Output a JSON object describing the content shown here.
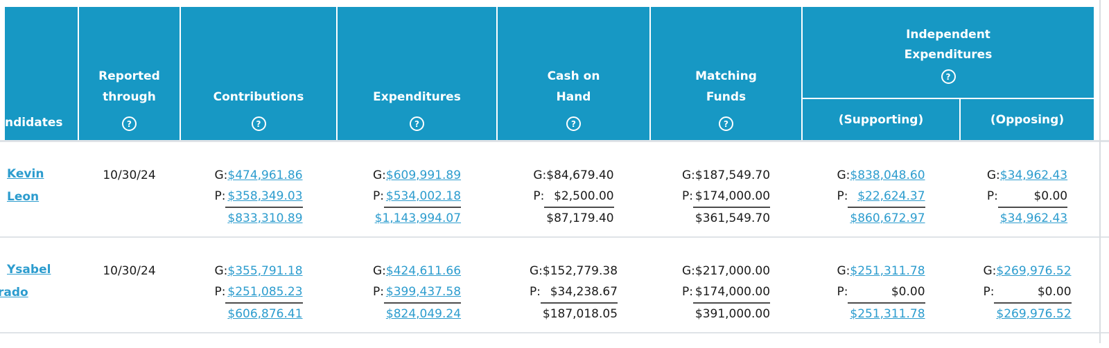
{
  "table": {
    "header": {
      "candidates_label": "ndidates",
      "columns": [
        {
          "id": "reported_through",
          "label_lines": [
            "Reported",
            "through"
          ],
          "help": true
        },
        {
          "id": "contributions",
          "label_lines": [
            "Contributions"
          ],
          "help": true
        },
        {
          "id": "expenditures",
          "label_lines": [
            "Expenditures"
          ],
          "help": true
        },
        {
          "id": "cash_on_hand",
          "label_lines": [
            "Cash on",
            "Hand"
          ],
          "help": true
        },
        {
          "id": "matching_funds",
          "label_lines": [
            "Matching",
            "Funds"
          ],
          "help": true
        }
      ],
      "ie_group": {
        "label_lines": [
          "Independent",
          "Expenditures"
        ],
        "help": true,
        "supporting_label": "(Supporting)",
        "opposing_label": "(Opposing)"
      },
      "help_glyph": "?"
    },
    "prefixes": {
      "general": "G:",
      "primary": "P:"
    },
    "money_column_order": [
      "contributions",
      "expenditures",
      "cash_on_hand",
      "matching_funds",
      "ie_supporting",
      "ie_opposing"
    ],
    "linked_columns": [
      "contributions",
      "expenditures",
      "ie_supporting",
      "ie_opposing"
    ],
    "rows": [
      {
        "name_lines": [
          "Kevin",
          "Leon"
        ],
        "name_clip": false,
        "reported_through": "10/30/24",
        "contributions": {
          "g": "$474,961.86",
          "p": "$358,349.03",
          "total": "$833,310.89"
        },
        "expenditures": {
          "g": "$609,991.89",
          "p": "$534,002.18",
          "total": "$1,143,994.07"
        },
        "cash_on_hand": {
          "g": "$84,679.40",
          "p": "$2,500.00",
          "total": "$87,179.40"
        },
        "matching_funds": {
          "g": "$187,549.70",
          "p": "$174,000.00",
          "total": "$361,549.70"
        },
        "ie_supporting": {
          "g": "$838,048.60",
          "p": "$22,624.37",
          "total": "$860,672.97"
        },
        "ie_opposing": {
          "g": "$34,962.43",
          "p": "$0.00",
          "total": "$34,962.43"
        }
      },
      {
        "name_lines": [
          "Ysabel",
          "rado"
        ],
        "name_clip": true,
        "reported_through": "10/30/24",
        "contributions": {
          "g": "$355,791.18",
          "p": "$251,085.23",
          "total": "$606,876.41"
        },
        "expenditures": {
          "g": "$424,611.66",
          "p": "$399,437.58",
          "total": "$824,049.24"
        },
        "cash_on_hand": {
          "g": "$152,779.38",
          "p": "$34,238.67",
          "total": "$187,018.05"
        },
        "matching_funds": {
          "g": "$217,000.00",
          "p": "$174,000.00",
          "total": "$391,000.00"
        },
        "ie_supporting": {
          "g": "$251,311.78",
          "p": "$0.00",
          "total": "$251,311.78"
        },
        "ie_opposing": {
          "g": "$269,976.52",
          "p": "$0.00",
          "total": "$269,976.52"
        }
      }
    ],
    "colors": {
      "header_bg": "#1798C4",
      "header_text": "#ffffff",
      "link": "#2C9CCE",
      "text": "#1b1b1b",
      "row_divider": "#dfe3e7",
      "sum_line": "#4b4b4b",
      "right_border": "#d9dde1"
    }
  }
}
